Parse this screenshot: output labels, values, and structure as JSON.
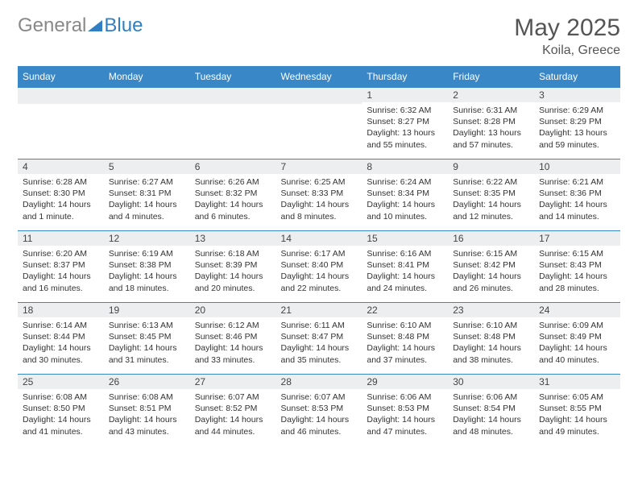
{
  "brand": {
    "part1": "General",
    "part2": "Blue"
  },
  "title": {
    "month": "May 2025",
    "location": "Koila, Greece"
  },
  "colors": {
    "header_bg": "#3a87c8",
    "header_text": "#ffffff",
    "daynum_bg": "#eceeef",
    "border": "#3a87c8",
    "text": "#333333",
    "brand_blue": "#2f7fc2"
  },
  "weekdays": [
    "Sunday",
    "Monday",
    "Tuesday",
    "Wednesday",
    "Thursday",
    "Friday",
    "Saturday"
  ],
  "weeks": [
    [
      {
        "empty": true
      },
      {
        "empty": true
      },
      {
        "empty": true
      },
      {
        "empty": true
      },
      {
        "n": "1",
        "sunrise": "Sunrise: 6:32 AM",
        "sunset": "Sunset: 8:27 PM",
        "day": "Daylight: 13 hours and 55 minutes."
      },
      {
        "n": "2",
        "sunrise": "Sunrise: 6:31 AM",
        "sunset": "Sunset: 8:28 PM",
        "day": "Daylight: 13 hours and 57 minutes."
      },
      {
        "n": "3",
        "sunrise": "Sunrise: 6:29 AM",
        "sunset": "Sunset: 8:29 PM",
        "day": "Daylight: 13 hours and 59 minutes."
      }
    ],
    [
      {
        "n": "4",
        "sunrise": "Sunrise: 6:28 AM",
        "sunset": "Sunset: 8:30 PM",
        "day": "Daylight: 14 hours and 1 minute."
      },
      {
        "n": "5",
        "sunrise": "Sunrise: 6:27 AM",
        "sunset": "Sunset: 8:31 PM",
        "day": "Daylight: 14 hours and 4 minutes."
      },
      {
        "n": "6",
        "sunrise": "Sunrise: 6:26 AM",
        "sunset": "Sunset: 8:32 PM",
        "day": "Daylight: 14 hours and 6 minutes."
      },
      {
        "n": "7",
        "sunrise": "Sunrise: 6:25 AM",
        "sunset": "Sunset: 8:33 PM",
        "day": "Daylight: 14 hours and 8 minutes."
      },
      {
        "n": "8",
        "sunrise": "Sunrise: 6:24 AM",
        "sunset": "Sunset: 8:34 PM",
        "day": "Daylight: 14 hours and 10 minutes."
      },
      {
        "n": "9",
        "sunrise": "Sunrise: 6:22 AM",
        "sunset": "Sunset: 8:35 PM",
        "day": "Daylight: 14 hours and 12 minutes."
      },
      {
        "n": "10",
        "sunrise": "Sunrise: 6:21 AM",
        "sunset": "Sunset: 8:36 PM",
        "day": "Daylight: 14 hours and 14 minutes."
      }
    ],
    [
      {
        "n": "11",
        "sunrise": "Sunrise: 6:20 AM",
        "sunset": "Sunset: 8:37 PM",
        "day": "Daylight: 14 hours and 16 minutes."
      },
      {
        "n": "12",
        "sunrise": "Sunrise: 6:19 AM",
        "sunset": "Sunset: 8:38 PM",
        "day": "Daylight: 14 hours and 18 minutes."
      },
      {
        "n": "13",
        "sunrise": "Sunrise: 6:18 AM",
        "sunset": "Sunset: 8:39 PM",
        "day": "Daylight: 14 hours and 20 minutes."
      },
      {
        "n": "14",
        "sunrise": "Sunrise: 6:17 AM",
        "sunset": "Sunset: 8:40 PM",
        "day": "Daylight: 14 hours and 22 minutes."
      },
      {
        "n": "15",
        "sunrise": "Sunrise: 6:16 AM",
        "sunset": "Sunset: 8:41 PM",
        "day": "Daylight: 14 hours and 24 minutes."
      },
      {
        "n": "16",
        "sunrise": "Sunrise: 6:15 AM",
        "sunset": "Sunset: 8:42 PM",
        "day": "Daylight: 14 hours and 26 minutes."
      },
      {
        "n": "17",
        "sunrise": "Sunrise: 6:15 AM",
        "sunset": "Sunset: 8:43 PM",
        "day": "Daylight: 14 hours and 28 minutes."
      }
    ],
    [
      {
        "n": "18",
        "sunrise": "Sunrise: 6:14 AM",
        "sunset": "Sunset: 8:44 PM",
        "day": "Daylight: 14 hours and 30 minutes."
      },
      {
        "n": "19",
        "sunrise": "Sunrise: 6:13 AM",
        "sunset": "Sunset: 8:45 PM",
        "day": "Daylight: 14 hours and 31 minutes."
      },
      {
        "n": "20",
        "sunrise": "Sunrise: 6:12 AM",
        "sunset": "Sunset: 8:46 PM",
        "day": "Daylight: 14 hours and 33 minutes."
      },
      {
        "n": "21",
        "sunrise": "Sunrise: 6:11 AM",
        "sunset": "Sunset: 8:47 PM",
        "day": "Daylight: 14 hours and 35 minutes."
      },
      {
        "n": "22",
        "sunrise": "Sunrise: 6:10 AM",
        "sunset": "Sunset: 8:48 PM",
        "day": "Daylight: 14 hours and 37 minutes."
      },
      {
        "n": "23",
        "sunrise": "Sunrise: 6:10 AM",
        "sunset": "Sunset: 8:48 PM",
        "day": "Daylight: 14 hours and 38 minutes."
      },
      {
        "n": "24",
        "sunrise": "Sunrise: 6:09 AM",
        "sunset": "Sunset: 8:49 PM",
        "day": "Daylight: 14 hours and 40 minutes."
      }
    ],
    [
      {
        "n": "25",
        "sunrise": "Sunrise: 6:08 AM",
        "sunset": "Sunset: 8:50 PM",
        "day": "Daylight: 14 hours and 41 minutes."
      },
      {
        "n": "26",
        "sunrise": "Sunrise: 6:08 AM",
        "sunset": "Sunset: 8:51 PM",
        "day": "Daylight: 14 hours and 43 minutes."
      },
      {
        "n": "27",
        "sunrise": "Sunrise: 6:07 AM",
        "sunset": "Sunset: 8:52 PM",
        "day": "Daylight: 14 hours and 44 minutes."
      },
      {
        "n": "28",
        "sunrise": "Sunrise: 6:07 AM",
        "sunset": "Sunset: 8:53 PM",
        "day": "Daylight: 14 hours and 46 minutes."
      },
      {
        "n": "29",
        "sunrise": "Sunrise: 6:06 AM",
        "sunset": "Sunset: 8:53 PM",
        "day": "Daylight: 14 hours and 47 minutes."
      },
      {
        "n": "30",
        "sunrise": "Sunrise: 6:06 AM",
        "sunset": "Sunset: 8:54 PM",
        "day": "Daylight: 14 hours and 48 minutes."
      },
      {
        "n": "31",
        "sunrise": "Sunrise: 6:05 AM",
        "sunset": "Sunset: 8:55 PM",
        "day": "Daylight: 14 hours and 49 minutes."
      }
    ]
  ]
}
